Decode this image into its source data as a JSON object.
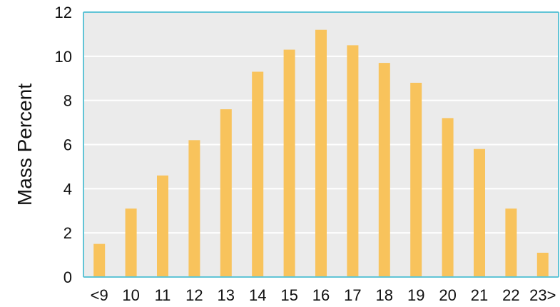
{
  "chart_data": {
    "type": "bar",
    "title": "",
    "xlabel": "",
    "ylabel": "Mass Percent",
    "categories": [
      "<9",
      "10",
      "11",
      "12",
      "13",
      "14",
      "15",
      "16",
      "17",
      "18",
      "19",
      "20",
      "21",
      "22",
      "23>"
    ],
    "values": [
      1.5,
      3.1,
      4.6,
      6.2,
      7.6,
      9.3,
      10.3,
      11.2,
      10.5,
      9.7,
      8.8,
      7.2,
      5.8,
      3.1,
      1.1
    ],
    "yticks": [
      "0",
      "2",
      "4",
      "6",
      "8",
      "10",
      "12"
    ],
    "ylim": [
      0,
      12
    ],
    "grid": true,
    "legend": "none",
    "colors": {
      "bar": "#F8C35C",
      "plot_background": "#EBEBEB",
      "grid": "#FFFFFF",
      "frame": "#61C4D6"
    }
  }
}
